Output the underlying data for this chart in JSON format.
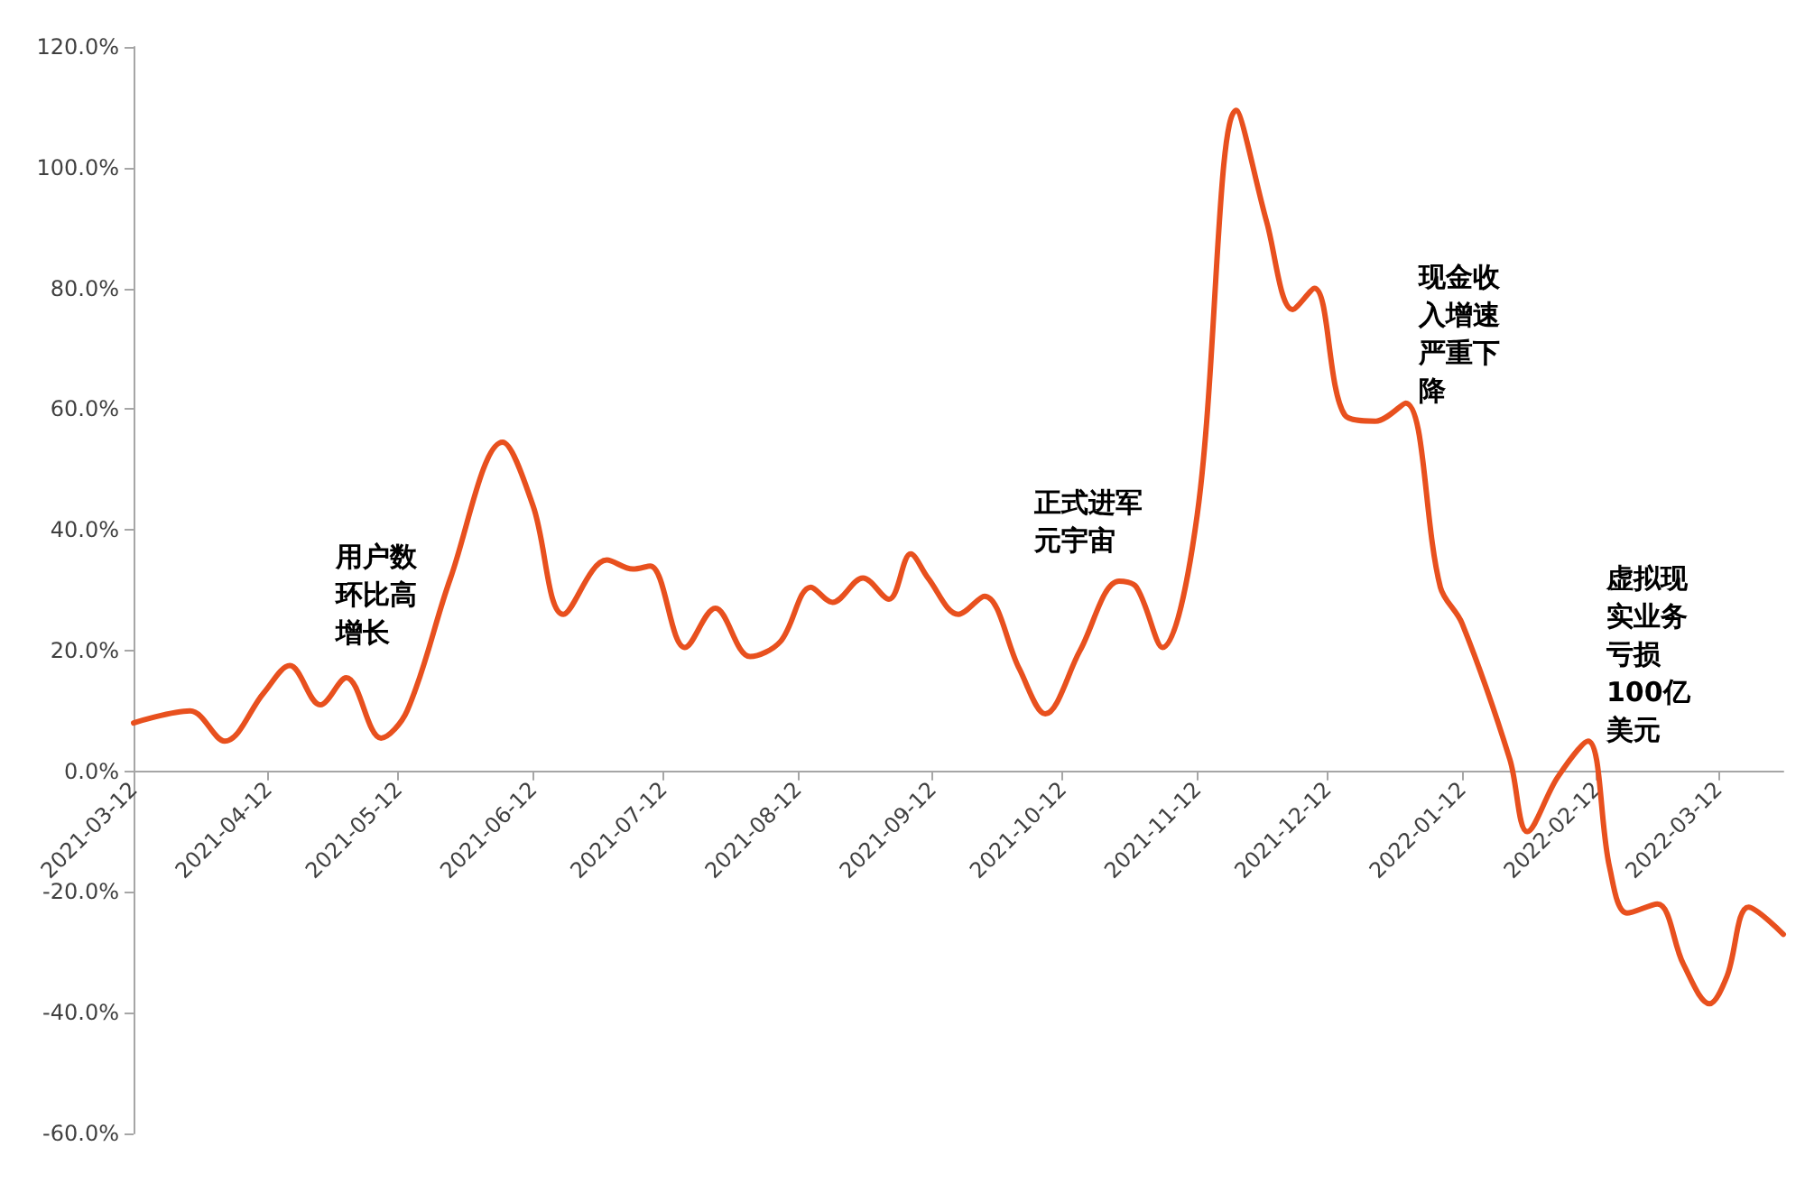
{
  "chart_data": {
    "type": "line",
    "x": [
      "2021-03-12",
      "2021-03-25",
      "2021-04-02",
      "2021-04-11",
      "2021-04-17",
      "2021-04-24",
      "2021-04-30",
      "2021-05-08",
      "2021-05-14",
      "2021-05-24",
      "2021-06-05",
      "2021-06-12",
      "2021-06-19",
      "2021-06-29",
      "2021-07-05",
      "2021-07-09",
      "2021-07-17",
      "2021-07-24",
      "2021-08-01",
      "2021-08-08",
      "2021-08-15",
      "2021-08-20",
      "2021-08-27",
      "2021-09-02",
      "2021-09-07",
      "2021-09-11",
      "2021-09-18",
      "2021-09-24",
      "2021-10-02",
      "2021-10-08",
      "2021-10-16",
      "2021-10-25",
      "2021-10-29",
      "2021-11-04",
      "2021-11-12",
      "2021-11-21",
      "2021-11-28",
      "2021-12-04",
      "2021-12-09",
      "2021-12-16",
      "2021-12-23",
      "2021-12-30",
      "2022-01-07",
      "2022-01-12",
      "2022-01-23",
      "2022-01-27",
      "2022-02-03",
      "2022-02-10",
      "2022-02-15",
      "2022-02-19",
      "2022-02-26",
      "2022-03-04",
      "2022-03-10",
      "2022-03-14",
      "2022-03-19",
      "2022-03-27"
    ],
    "series": [
      {
        "color": "#e8501e",
        "values": [
          8,
          10,
          5,
          13,
          17.5,
          11,
          15.5,
          5.5,
          10,
          32,
          54.5,
          44,
          26,
          35,
          33.5,
          34,
          20.5,
          27,
          19,
          21.5,
          30.5,
          28,
          32,
          28.5,
          36,
          32,
          26,
          29,
          17,
          9.5,
          20,
          31.5,
          30.5,
          20.5,
          42.5,
          109.5,
          91,
          76.5,
          80,
          59,
          58,
          61,
          30.5,
          24.5,
          2,
          -10,
          -1,
          5,
          -16,
          -23.5,
          -22,
          -32,
          -38.5,
          -34,
          -22.5,
          -27
        ]
      }
    ],
    "xlim": [
      "2021-03-12",
      "2022-03-27"
    ],
    "xticks": [
      "2021-03-12",
      "2021-04-12",
      "2021-05-12",
      "2021-06-12",
      "2021-07-12",
      "2021-08-12",
      "2021-09-12",
      "2021-10-12",
      "2021-11-12",
      "2021-12-12",
      "2022-01-12",
      "2022-02-12",
      "2022-03-12"
    ],
    "ylim": [
      -60,
      120
    ],
    "yticks": [
      {
        "value": -60,
        "label": "-60.0%"
      },
      {
        "value": -40,
        "label": "-40.0%"
      },
      {
        "value": -20,
        "label": "-20.0%"
      },
      {
        "value": 0,
        "label": "0.0%"
      },
      {
        "value": 20,
        "label": "20.0%"
      },
      {
        "value": 40,
        "label": "40.0%"
      },
      {
        "value": 60,
        "label": "60.0%"
      },
      {
        "value": 80,
        "label": "80.0%"
      },
      {
        "value": 100,
        "label": "100.0%"
      },
      {
        "value": 120,
        "label": "120.0%"
      }
    ],
    "marker": "none",
    "line_style": "solid",
    "annotations": [
      "用户数环比高增长",
      "正式进军元宇宙",
      "现金收入增速严重下降",
      "虚拟现实业务亏损100亿美元"
    ]
  }
}
